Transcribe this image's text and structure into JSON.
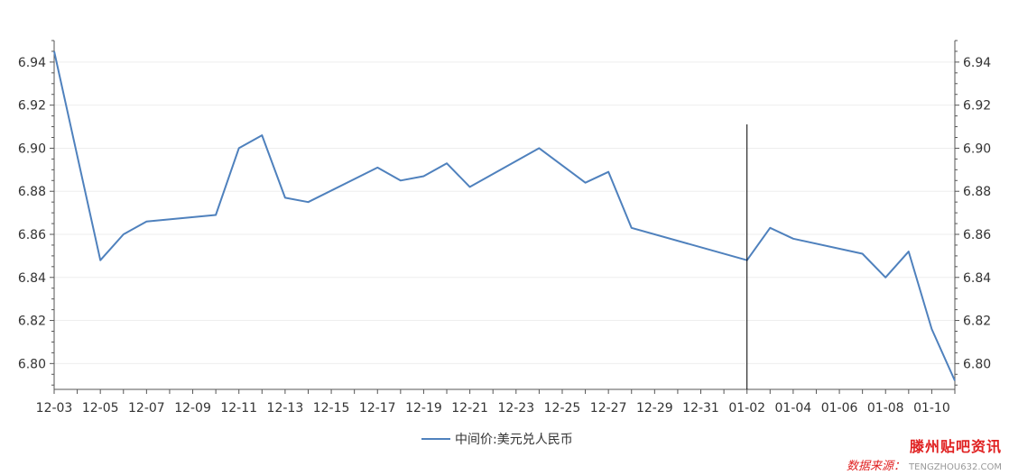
{
  "chart_data": {
    "type": "line",
    "x": [
      "12-03",
      "12-04",
      "12-05",
      "12-06",
      "12-07",
      "12-08",
      "12-09",
      "12-10",
      "12-11",
      "12-12",
      "12-13",
      "12-14",
      "12-15",
      "12-16",
      "12-17",
      "12-18",
      "12-19",
      "12-20",
      "12-21",
      "12-22",
      "12-23",
      "12-24",
      "12-25",
      "12-26",
      "12-27",
      "12-28",
      "12-29",
      "12-30",
      "12-31",
      "01-01",
      "01-02",
      "01-03",
      "01-04",
      "01-05",
      "01-06",
      "01-07",
      "01-08",
      "01-09",
      "01-10",
      "01-11"
    ],
    "series": [
      {
        "name": "中间价:美元兑人民币",
        "color": "#4f81bd",
        "values": [
          6.945,
          null,
          6.848,
          6.86,
          6.866,
          null,
          null,
          6.869,
          6.9,
          6.906,
          6.877,
          6.875,
          null,
          null,
          6.891,
          6.885,
          6.887,
          6.893,
          6.882,
          null,
          null,
          6.9,
          6.892,
          6.884,
          6.889,
          6.863,
          null,
          null,
          null,
          null,
          6.848,
          6.863,
          6.858,
          null,
          null,
          6.851,
          6.84,
          6.852,
          6.816,
          6.792
        ]
      }
    ],
    "tick_labels": [
      "12-03",
      "12-05",
      "12-07",
      "12-09",
      "12-11",
      "12-13",
      "12-15",
      "12-17",
      "12-19",
      "12-21",
      "12-23",
      "12-25",
      "12-27",
      "12-29",
      "12-31",
      "01-02",
      "01-04",
      "01-06",
      "01-08",
      "01-10"
    ],
    "yticks": [
      "6.80",
      "6.82",
      "6.84",
      "6.86",
      "6.88",
      "6.90",
      "6.92",
      "6.94"
    ],
    "ylim": [
      6.788,
      6.95
    ],
    "grid": true,
    "dual_y_axis": true,
    "legend_position": "bottom-center",
    "cursor_at": "01-02",
    "title": "",
    "xlabel": "",
    "ylabel": ""
  },
  "watermark": {
    "title": "滕州贴吧资讯",
    "subtitle": "数据来源：",
    "subtitle_url": "TENGZHOU632.COM"
  }
}
